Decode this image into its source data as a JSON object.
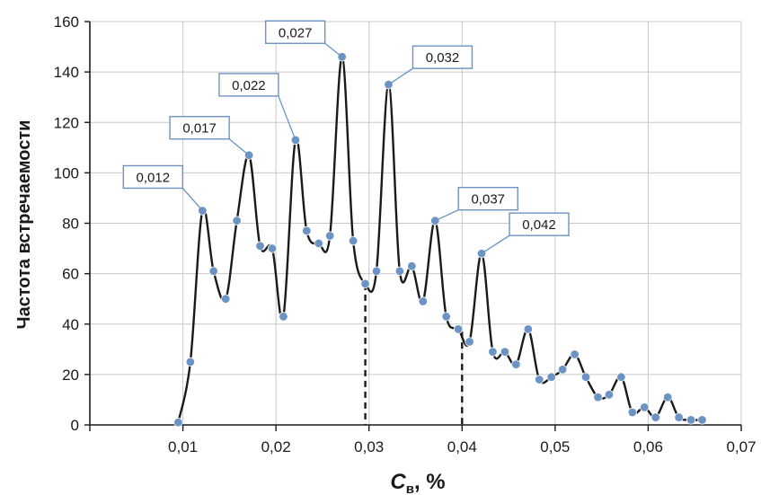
{
  "chart_data": {
    "type": "line",
    "title": "",
    "ylabel": "Частота встречаемости",
    "xlabel_main": "C",
    "xlabel_sub": "в",
    "xlabel_unit": ", %",
    "xlim": [
      0,
      0.07
    ],
    "ylim": [
      0,
      160
    ],
    "x_ticks": [
      "0,01",
      "0,02",
      "0,03",
      "0,04",
      "0,05",
      "0,06",
      "0,07"
    ],
    "x_tick_values": [
      0.01,
      0.02,
      0.03,
      0.04,
      0.05,
      0.06,
      0.07
    ],
    "y_ticks": [
      "0",
      "20",
      "40",
      "60",
      "80",
      "100",
      "120",
      "140",
      "160"
    ],
    "y_tick_values": [
      0,
      20,
      40,
      60,
      80,
      100,
      120,
      140,
      160
    ],
    "grid": true,
    "series_color": "#1a1a1a",
    "marker_color": "#6b93c4",
    "points": [
      [
        0.0095,
        1
      ],
      [
        0.0108,
        25
      ],
      [
        0.0121,
        85
      ],
      [
        0.0133,
        61
      ],
      [
        0.0146,
        50
      ],
      [
        0.0158,
        81
      ],
      [
        0.0171,
        107
      ],
      [
        0.0183,
        71
      ],
      [
        0.0196,
        70
      ],
      [
        0.0208,
        43
      ],
      [
        0.0221,
        113
      ],
      [
        0.0233,
        77
      ],
      [
        0.0246,
        72
      ],
      [
        0.0258,
        75
      ],
      [
        0.0271,
        146
      ],
      [
        0.0283,
        73
      ],
      [
        0.0296,
        56
      ],
      [
        0.0308,
        61
      ],
      [
        0.0321,
        135
      ],
      [
        0.0333,
        61
      ],
      [
        0.0346,
        63
      ],
      [
        0.0358,
        49
      ],
      [
        0.0371,
        81
      ],
      [
        0.0383,
        43
      ],
      [
        0.0396,
        38
      ],
      [
        0.0408,
        33
      ],
      [
        0.0421,
        68
      ],
      [
        0.0433,
        29
      ],
      [
        0.0446,
        29
      ],
      [
        0.0458,
        24
      ],
      [
        0.0471,
        38
      ],
      [
        0.0483,
        18
      ],
      [
        0.0496,
        19
      ],
      [
        0.0508,
        22
      ],
      [
        0.0521,
        28
      ],
      [
        0.0533,
        19
      ],
      [
        0.0546,
        11
      ],
      [
        0.0558,
        12
      ],
      [
        0.0571,
        19
      ],
      [
        0.0583,
        5
      ],
      [
        0.0596,
        7
      ],
      [
        0.0608,
        3
      ],
      [
        0.0621,
        11
      ],
      [
        0.0633,
        3
      ],
      [
        0.0646,
        2
      ],
      [
        0.0658,
        2
      ]
    ],
    "dashed_verticals": [
      {
        "x": 0.0296,
        "y": 56
      },
      {
        "x": 0.04,
        "y": 37
      }
    ],
    "annotations": [
      {
        "label": "0,012",
        "x": 0.0121,
        "y": 85
      },
      {
        "label": "0,017",
        "x": 0.0171,
        "y": 107
      },
      {
        "label": "0,022",
        "x": 0.0221,
        "y": 113
      },
      {
        "label": "0,027",
        "x": 0.0271,
        "y": 146
      },
      {
        "label": "0,032",
        "x": 0.0321,
        "y": 135
      },
      {
        "label": "0,037",
        "x": 0.0371,
        "y": 81
      },
      {
        "label": "0,042",
        "x": 0.0421,
        "y": 68
      }
    ]
  }
}
